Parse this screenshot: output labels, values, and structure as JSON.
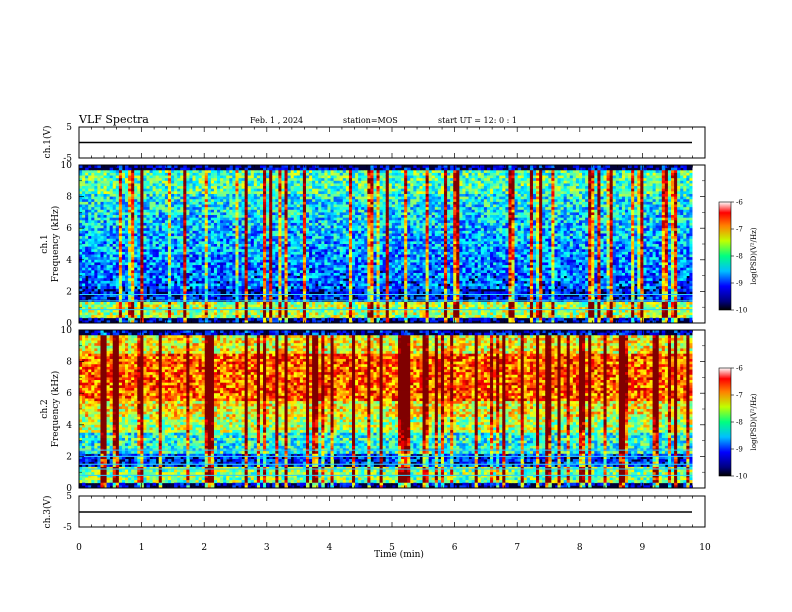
{
  "header": {
    "title": "VLF Spectra",
    "date": "Feb. 1 , 2024",
    "station": "station=MOS",
    "start": "start UT =  12: 0 : 1"
  },
  "chart_data": [
    {
      "type": "line",
      "panel": "ch1-waveform",
      "ylabel": "ch.1(V)",
      "ylim": [
        -5,
        5
      ],
      "yticks": [
        "5",
        "-5"
      ],
      "xlim": [
        0,
        10
      ],
      "trace_level_v": 0,
      "data_end_min": 9.8
    },
    {
      "type": "heatmap",
      "panel": "ch1-spectrogram",
      "ylabel": "ch.1\nFrequency (kHz)",
      "ylim": [
        0,
        10
      ],
      "yticks": [
        "0",
        "2",
        "4",
        "6",
        "8",
        "10"
      ],
      "xlim": [
        0,
        10
      ],
      "data_end_min": 9.8,
      "colorbar": {
        "label": "log(PSD)(V²/Hz)",
        "range": [
          -10,
          -6
        ],
        "ticks": [
          "-6",
          "-7",
          "-8",
          "-9",
          "-10"
        ],
        "colormap": "jet"
      },
      "horizontal_lines_khz": [
        0.85,
        1.4,
        1.8
      ]
    },
    {
      "type": "heatmap",
      "panel": "ch2-spectrogram",
      "ylabel": "ch.2\nFrequency (kHz)",
      "ylim": [
        0,
        10
      ],
      "yticks": [
        "0",
        "2",
        "4",
        "6",
        "8",
        "10"
      ],
      "xlim": [
        0,
        10
      ],
      "data_end_min": 9.8,
      "colorbar": {
        "label": "log(PSD)(V²/Hz)",
        "range": [
          -10,
          -6
        ],
        "ticks": [
          "-6",
          "-7",
          "-8",
          "-9",
          "-10"
        ],
        "colormap": "jet"
      },
      "horizontal_lines_khz": [
        0.8,
        1.2,
        1.5,
        2.0,
        2.4
      ]
    },
    {
      "type": "line",
      "panel": "ch3-waveform",
      "ylabel": "ch.3(V)",
      "ylim": [
        -5,
        5
      ],
      "yticks": [
        "5",
        "-5"
      ],
      "xlim": [
        0,
        10
      ],
      "trace_level_v": 0,
      "data_end_min": 9.8,
      "xlabel": "Time (min)",
      "xticks": [
        "0",
        "1",
        "2",
        "3",
        "4",
        "5",
        "6",
        "7",
        "8",
        "9",
        "10"
      ]
    }
  ]
}
